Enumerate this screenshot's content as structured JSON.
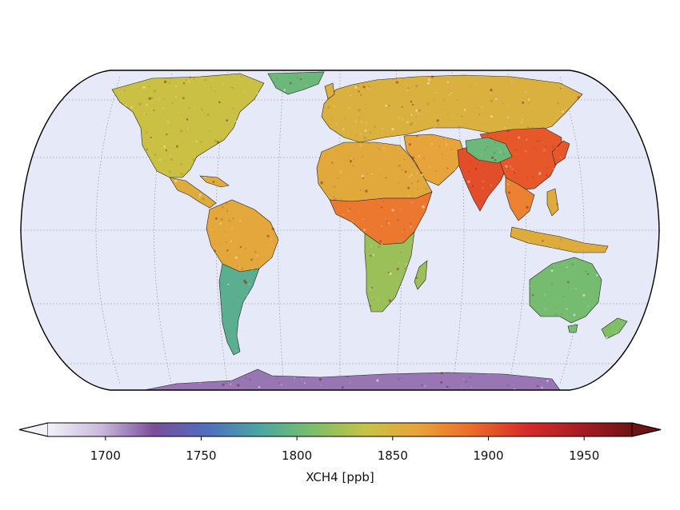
{
  "colorbar": {
    "label": "XCH4 [ppb]",
    "ticks": [
      {
        "value": 1700,
        "label": "1700"
      },
      {
        "value": 1750,
        "label": "1750"
      },
      {
        "value": 1800,
        "label": "1800"
      },
      {
        "value": 1850,
        "label": "1850"
      },
      {
        "value": 1900,
        "label": "1900"
      },
      {
        "value": 1950,
        "label": "1950"
      }
    ],
    "range": [
      1670,
      1975
    ],
    "extend": "both",
    "colormap": [
      "#f2f2f8",
      "#c9b9dc",
      "#7a4e9a",
      "#4f6ec0",
      "#4aa7a2",
      "#7bbf6a",
      "#c8c244",
      "#e8a23a",
      "#ec6a2a",
      "#d62c2a",
      "#a91d23",
      "#6e1414"
    ]
  },
  "map": {
    "projection": "Robinson-like world map",
    "ocean_color": "#e6e9f7",
    "land_regions": [
      {
        "name": "North America",
        "level": 1838
      },
      {
        "name": "Greenland",
        "level": 1800
      },
      {
        "name": "Central America",
        "level": 1855
      },
      {
        "name": "South America (north)",
        "level": 1860
      },
      {
        "name": "South America (south)",
        "level": 1790
      },
      {
        "name": "Europe and Russia",
        "level": 1852
      },
      {
        "name": "Middle East",
        "level": 1862
      },
      {
        "name": "Africa (north)",
        "level": 1858
      },
      {
        "name": "Africa (central)",
        "level": 1885
      },
      {
        "name": "Africa (south)",
        "level": 1820
      },
      {
        "name": "South Asia",
        "level": 1905
      },
      {
        "name": "China",
        "level": 1900
      },
      {
        "name": "Tibetan Plateau",
        "level": 1800
      },
      {
        "name": "Southeast Asia",
        "level": 1880
      },
      {
        "name": "Indonesia",
        "level": 1855
      },
      {
        "name": "Australia",
        "level": 1805
      },
      {
        "name": "New Zealand",
        "level": 1810
      },
      {
        "name": "Antarctica",
        "level": 1715
      }
    ]
  }
}
